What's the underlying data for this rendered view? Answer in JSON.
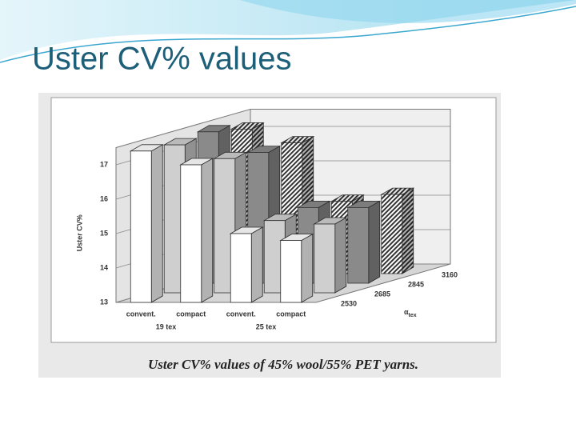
{
  "slide": {
    "title": "Uster CV% values"
  },
  "chart_data": {
    "type": "bar3d",
    "y_label": "Uster CV%",
    "caption": "Uster CV% values of 45% wool/55% PET yarns.",
    "categories": [
      "convent.",
      "compact",
      "convent.",
      "compact"
    ],
    "category_groups": [
      "19 tex",
      "25 tex"
    ],
    "depth_label_symbol": "α",
    "depth_label_sub": "tex",
    "series": [
      {
        "name": "2530",
        "color": "#ffffff",
        "values": [
          17.4,
          17.0,
          15.0,
          14.8
        ]
      },
      {
        "name": "2685",
        "color": "#cfcfcf",
        "values": [
          17.3,
          16.9,
          15.1,
          15.0
        ]
      },
      {
        "name": "2845",
        "color": "#8a8a8a",
        "values": [
          17.4,
          16.8,
          15.2,
          15.2
        ]
      },
      {
        "name": "3160",
        "color": "#555555",
        "pattern": "hatch",
        "values": [
          17.2,
          16.8,
          15.1,
          15.3
        ]
      }
    ],
    "ylim": [
      13,
      17.5
    ],
    "yticks": [
      13,
      14,
      15,
      16,
      17
    ],
    "grid": true
  }
}
